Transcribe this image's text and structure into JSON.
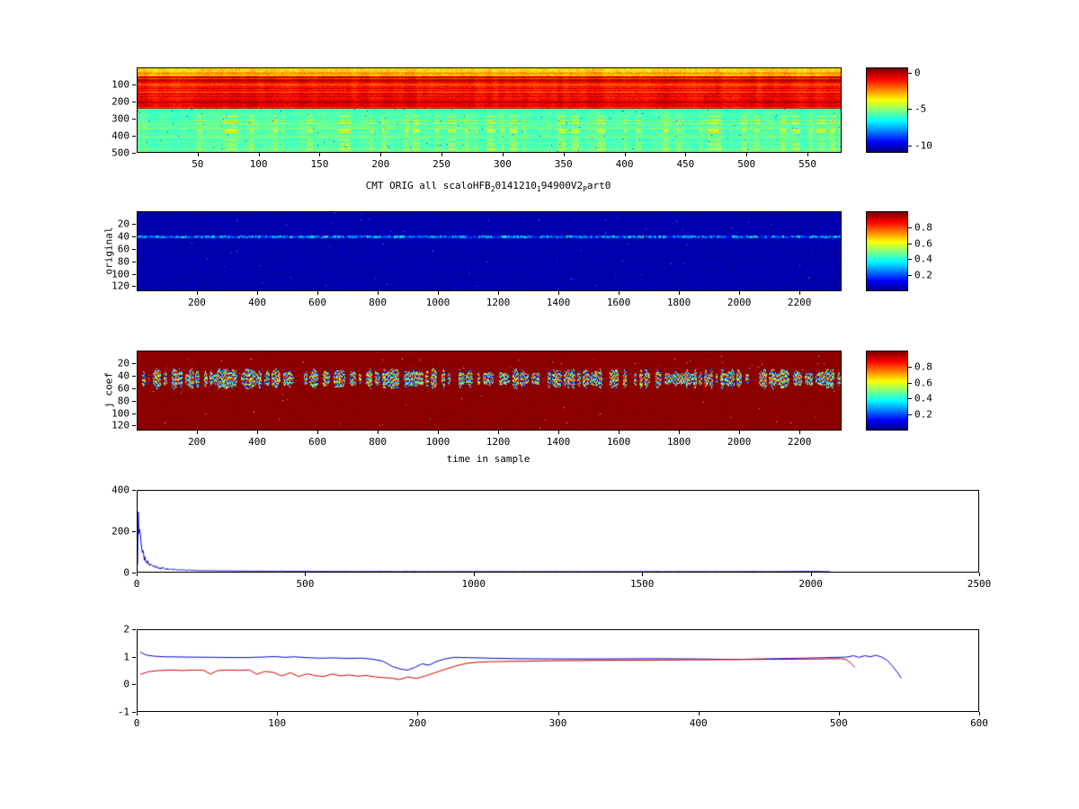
{
  "figure": {
    "background": "#ffffff"
  },
  "title": {
    "parts": [
      {
        "text": "CMT ORIG all scaloHFB"
      },
      {
        "sub": "2"
      },
      {
        "text": "0141210"
      },
      {
        "sub": "1"
      },
      {
        "text": "94900V2"
      },
      {
        "sub": "P"
      },
      {
        "text": "art0"
      }
    ]
  },
  "labels": {
    "plot2_ylabel": "original",
    "plot3_ylabel": "j coef",
    "plot3_xlabel": "time in sample"
  },
  "chart_data": [
    {
      "id": "spectrogram",
      "type": "heatmap",
      "colormap": "jet",
      "x": {
        "min": 0,
        "max": 578,
        "ticks": [
          50,
          100,
          150,
          200,
          250,
          300,
          350,
          400,
          450,
          500,
          550
        ]
      },
      "y": {
        "min": 0,
        "max": 500,
        "ticks": [
          100,
          200,
          300,
          400,
          500
        ],
        "reversed": true
      },
      "colorbar": {
        "min": -11,
        "max": 0.7,
        "ticks": [
          0,
          -5,
          -10
        ]
      },
      "content": {
        "description": "wideband spectrogram in dB: orange-yellow top rows, strong red band rows ~50-240, cyan-green noise floor below with sparse yellow streaks",
        "seed": 7,
        "regions": [
          {
            "rows": [
              0,
              46
            ],
            "level": 0.7,
            "row_var": 0.14,
            "noise": 0.1
          },
          {
            "rows": [
              46,
              238
            ],
            "level": 0.87,
            "row_var": 0.2,
            "noise": 0.07
          },
          {
            "rows": [
              238,
              500
            ],
            "level": 0.46,
            "row_var": 0.1,
            "noise": 0.08
          }
        ]
      }
    },
    {
      "id": "original",
      "type": "heatmap",
      "colormap": "jet",
      "x": {
        "min": 0,
        "max": 2340,
        "ticks": [
          200,
          400,
          600,
          800,
          1000,
          1200,
          1400,
          1600,
          1800,
          2000,
          2200
        ]
      },
      "y": {
        "min": 0,
        "max": 128,
        "ticks": [
          20,
          40,
          60,
          80,
          100,
          120
        ],
        "reversed": true
      },
      "colorbar": {
        "min": 0,
        "max": 1,
        "ticks": [
          0.8,
          0.6,
          0.4,
          0.2
        ]
      },
      "content": {
        "description": "scalogram of original signal: dark blue background with a faint noisy horizontal line near scale 40 with sparse bright cyan dots",
        "seed": 11,
        "background": 0.03,
        "line_row": 40,
        "line_halfwidth": 2.2
      }
    },
    {
      "id": "jcoef",
      "type": "heatmap",
      "colormap": "jet",
      "x": {
        "min": 0,
        "max": 2340,
        "ticks": [
          200,
          400,
          600,
          800,
          1000,
          1200,
          1400,
          1600,
          1800,
          2000,
          2200
        ]
      },
      "y": {
        "min": 0,
        "max": 128,
        "ticks": [
          20,
          40,
          60,
          80,
          100,
          120
        ],
        "reversed": true
      },
      "colorbar": {
        "min": 0,
        "max": 1,
        "ticks": [
          0.8,
          0.6,
          0.4,
          0.2
        ]
      },
      "content": {
        "description": "thresholded coefficients: dark red background, noisy rainbow blob band near scale 40-55, sparse colored specks above band",
        "seed": 23,
        "background": 0.975,
        "band_row": 44
      }
    },
    {
      "id": "decay",
      "type": "line",
      "x": {
        "min": 0,
        "max": 2500,
        "ticks": [
          0,
          500,
          1000,
          1500,
          2000,
          2500
        ]
      },
      "y": {
        "min": 0,
        "max": 400,
        "ticks": [
          0,
          200,
          400
        ]
      },
      "series": [
        {
          "name": "sorted-coefficient-magnitude",
          "color": "#0000cc",
          "jitter": 0.6,
          "points": [
            [
              0,
              30
            ],
            [
              2,
              355
            ],
            [
              4,
              250
            ],
            [
              6,
              185
            ],
            [
              9,
              140
            ],
            [
              12,
              110
            ],
            [
              16,
              85
            ],
            [
              20,
              68
            ],
            [
              26,
              52
            ],
            [
              33,
              40
            ],
            [
              42,
              30
            ],
            [
              55,
              22
            ],
            [
              70,
              17
            ],
            [
              90,
              13
            ],
            [
              115,
              10
            ],
            [
              145,
              8
            ],
            [
              180,
              6
            ],
            [
              220,
              5
            ],
            [
              270,
              4
            ],
            [
              330,
              3
            ],
            [
              400,
              2.5
            ],
            [
              500,
              2
            ],
            [
              650,
              1.5
            ],
            [
              850,
              1.2
            ],
            [
              1100,
              1
            ],
            [
              1400,
              1
            ],
            [
              1700,
              1
            ],
            [
              1950,
              1.5
            ],
            [
              2020,
              2
            ],
            [
              2060,
              0.5
            ]
          ]
        }
      ]
    },
    {
      "id": "convergence",
      "type": "line",
      "x": {
        "min": 0,
        "max": 600,
        "ticks": [
          0,
          100,
          200,
          300,
          400,
          500,
          600
        ]
      },
      "y": {
        "min": -1,
        "max": 2,
        "ticks": [
          -1,
          0,
          1,
          2
        ]
      },
      "series": [
        {
          "name": "blue-curve",
          "color": "#0000cc",
          "points": [
            [
              2,
              1.18
            ],
            [
              6,
              1.08
            ],
            [
              12,
              1.03
            ],
            [
              20,
              1.01
            ],
            [
              35,
              1.0
            ],
            [
              55,
              0.99
            ],
            [
              75,
              0.98
            ],
            [
              90,
              1.0
            ],
            [
              98,
              1.02
            ],
            [
              105,
              0.99
            ],
            [
              112,
              1.01
            ],
            [
              120,
              0.98
            ],
            [
              130,
              0.96
            ],
            [
              140,
              0.97
            ],
            [
              150,
              0.95
            ],
            [
              160,
              0.96
            ],
            [
              168,
              0.92
            ],
            [
              175,
              0.85
            ],
            [
              182,
              0.65
            ],
            [
              188,
              0.55
            ],
            [
              193,
              0.52
            ],
            [
              198,
              0.62
            ],
            [
              203,
              0.75
            ],
            [
              208,
              0.7
            ],
            [
              213,
              0.83
            ],
            [
              219,
              0.93
            ],
            [
              226,
              0.99
            ],
            [
              235,
              0.98
            ],
            [
              250,
              0.96
            ],
            [
              270,
              0.94
            ],
            [
              295,
              0.93
            ],
            [
              330,
              0.93
            ],
            [
              365,
              0.94
            ],
            [
              400,
              0.93
            ],
            [
              425,
              0.91
            ],
            [
              445,
              0.93
            ],
            [
              465,
              0.95
            ],
            [
              485,
              0.97
            ],
            [
              500,
              0.99
            ],
            [
              506,
              1.0
            ],
            [
              511,
              1.05
            ],
            [
              515,
              0.99
            ],
            [
              519,
              1.05
            ],
            [
              523,
              1.01
            ],
            [
              527,
              1.07
            ],
            [
              531,
              1.0
            ],
            [
              535,
              0.88
            ],
            [
              539,
              0.65
            ],
            [
              542,
              0.45
            ],
            [
              545,
              0.22
            ]
          ]
        },
        {
          "name": "red-curve",
          "color": "#cc0000",
          "points": [
            [
              2,
              0.36
            ],
            [
              8,
              0.46
            ],
            [
              15,
              0.5
            ],
            [
              24,
              0.52
            ],
            [
              32,
              0.5
            ],
            [
              40,
              0.52
            ],
            [
              47,
              0.51
            ],
            [
              52,
              0.37
            ],
            [
              57,
              0.5
            ],
            [
              64,
              0.52
            ],
            [
              72,
              0.51
            ],
            [
              80,
              0.52
            ],
            [
              85,
              0.36
            ],
            [
              91,
              0.47
            ],
            [
              97,
              0.43
            ],
            [
              103,
              0.3
            ],
            [
              109,
              0.42
            ],
            [
              115,
              0.28
            ],
            [
              121,
              0.38
            ],
            [
              127,
              0.31
            ],
            [
              133,
              0.28
            ],
            [
              139,
              0.37
            ],
            [
              145,
              0.3
            ],
            [
              151,
              0.34
            ],
            [
              157,
              0.29
            ],
            [
              163,
              0.32
            ],
            [
              169,
              0.27
            ],
            [
              175,
              0.24
            ],
            [
              181,
              0.22
            ],
            [
              187,
              0.17
            ],
            [
              193,
              0.26
            ],
            [
              199,
              0.21
            ],
            [
              205,
              0.29
            ],
            [
              211,
              0.4
            ],
            [
              219,
              0.54
            ],
            [
              227,
              0.67
            ],
            [
              235,
              0.77
            ],
            [
              243,
              0.81
            ],
            [
              252,
              0.83
            ],
            [
              263,
              0.84
            ],
            [
              278,
              0.85
            ],
            [
              295,
              0.86
            ],
            [
              315,
              0.87
            ],
            [
              345,
              0.88
            ],
            [
              375,
              0.89
            ],
            [
              405,
              0.9
            ],
            [
              435,
              0.91
            ],
            [
              465,
              0.92
            ],
            [
              490,
              0.93
            ],
            [
              502,
              0.94
            ],
            [
              506,
              0.9
            ],
            [
              509,
              0.78
            ],
            [
              512,
              0.62
            ]
          ]
        }
      ]
    }
  ]
}
